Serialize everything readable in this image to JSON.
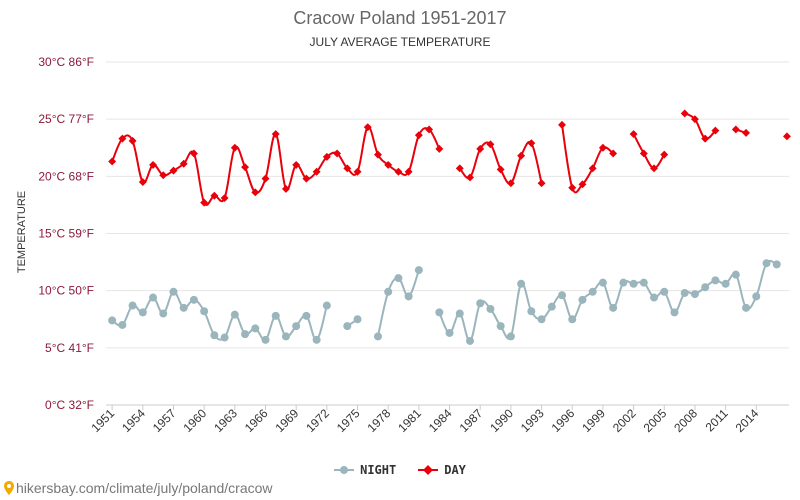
{
  "title": "Cracow Poland 1951-2017",
  "subtitle": "JULY AVERAGE TEMPERATURE",
  "footer": "hikersbay.com/climate/july/poland/cracow",
  "colors": {
    "night": "#9bb5bd",
    "day": "#e8000b",
    "grid": "#e6e6e6",
    "ytick": "#8b1a3a"
  },
  "chart_data": {
    "type": "line",
    "title": "Cracow Poland 1951-2017",
    "subtitle": "JULY AVERAGE TEMPERATURE",
    "ylabel": "TEMPERATURE",
    "xlabel": "",
    "ylim": [
      0,
      30
    ],
    "xlim": [
      1951,
      2017
    ],
    "grid": true,
    "legend_position": "bottom",
    "y_ticks": [
      {
        "value": 0,
        "label": "0°C 32°F"
      },
      {
        "value": 5,
        "label": "5°C 41°F"
      },
      {
        "value": 10,
        "label": "10°C 50°F"
      },
      {
        "value": 15,
        "label": "15°C 59°F"
      },
      {
        "value": 20,
        "label": "20°C 68°F"
      },
      {
        "value": 25,
        "label": "25°C 77°F"
      },
      {
        "value": 30,
        "label": "30°C 86°F"
      }
    ],
    "x_ticks": [
      1951,
      1954,
      1957,
      1960,
      1963,
      1966,
      1969,
      1972,
      1975,
      1978,
      1981,
      1984,
      1987,
      1990,
      1993,
      1996,
      1999,
      2002,
      2005,
      2008,
      2011,
      2014
    ],
    "series": [
      {
        "name": "NIGHT",
        "x": [
          1951,
          1952,
          1953,
          1954,
          1955,
          1956,
          1957,
          1958,
          1959,
          1960,
          1961,
          1962,
          1963,
          1964,
          1965,
          1966,
          1967,
          1968,
          1969,
          1970,
          1971,
          1972,
          1973,
          1974,
          1975,
          1976,
          1977,
          1978,
          1979,
          1980,
          1981,
          1982,
          1983,
          1984,
          1985,
          1986,
          1987,
          1988,
          1989,
          1990,
          1991,
          1992,
          1993,
          1994,
          1995,
          1996,
          1997,
          1998,
          1999,
          2000,
          2001,
          2002,
          2003,
          2004,
          2005,
          2006,
          2007,
          2008,
          2009,
          2010,
          2011,
          2012,
          2013,
          2014,
          2015,
          2016,
          2017
        ],
        "values": [
          7.4,
          7.0,
          8.7,
          8.1,
          9.4,
          8.0,
          9.9,
          8.5,
          9.2,
          8.2,
          6.1,
          5.9,
          7.9,
          6.2,
          6.7,
          5.7,
          7.8,
          6.0,
          6.9,
          7.8,
          5.7,
          8.7,
          null,
          6.9,
          7.5,
          null,
          6.0,
          9.9,
          11.1,
          9.5,
          11.8,
          null,
          8.1,
          6.3,
          8.0,
          5.6,
          8.9,
          8.4,
          6.9,
          6.0,
          10.6,
          8.2,
          7.5,
          8.6,
          9.6,
          7.5,
          9.2,
          9.9,
          10.7,
          8.5,
          10.7,
          10.6,
          10.7,
          9.4,
          9.9,
          8.1,
          9.8,
          9.7,
          10.3,
          10.9,
          10.6,
          11.4,
          8.5,
          9.5,
          12.4,
          12.3,
          null
        ]
      },
      {
        "name": "DAY",
        "x": [
          1951,
          1952,
          1953,
          1954,
          1955,
          1956,
          1957,
          1958,
          1959,
          1960,
          1961,
          1962,
          1963,
          1964,
          1965,
          1966,
          1967,
          1968,
          1969,
          1970,
          1971,
          1972,
          1973,
          1974,
          1975,
          1976,
          1977,
          1978,
          1979,
          1980,
          1981,
          1982,
          1983,
          1984,
          1985,
          1986,
          1987,
          1988,
          1989,
          1990,
          1991,
          1992,
          1993,
          1994,
          1995,
          1996,
          1997,
          1998,
          1999,
          2000,
          2001,
          2002,
          2003,
          2004,
          2005,
          2006,
          2007,
          2008,
          2009,
          2010,
          2011,
          2012,
          2013,
          2014,
          2015,
          2016,
          2017
        ],
        "values": [
          21.3,
          23.3,
          23.1,
          19.5,
          21.0,
          20.1,
          20.5,
          21.1,
          22.0,
          17.7,
          18.3,
          18.1,
          22.5,
          20.8,
          18.6,
          19.8,
          23.7,
          18.9,
          21.0,
          19.8,
          20.4,
          21.7,
          22.0,
          20.7,
          20.4,
          24.3,
          21.9,
          21.0,
          20.4,
          20.4,
          23.6,
          24.1,
          22.4,
          null,
          20.7,
          19.9,
          22.4,
          22.8,
          20.6,
          19.4,
          21.8,
          22.9,
          19.4,
          null,
          24.5,
          19.0,
          19.3,
          20.7,
          22.5,
          22.0,
          null,
          23.7,
          22.0,
          20.7,
          21.9,
          null,
          25.5,
          25.0,
          23.3,
          24.0,
          null,
          24.1,
          23.8,
          null,
          null,
          null,
          23.5
        ]
      }
    ]
  }
}
